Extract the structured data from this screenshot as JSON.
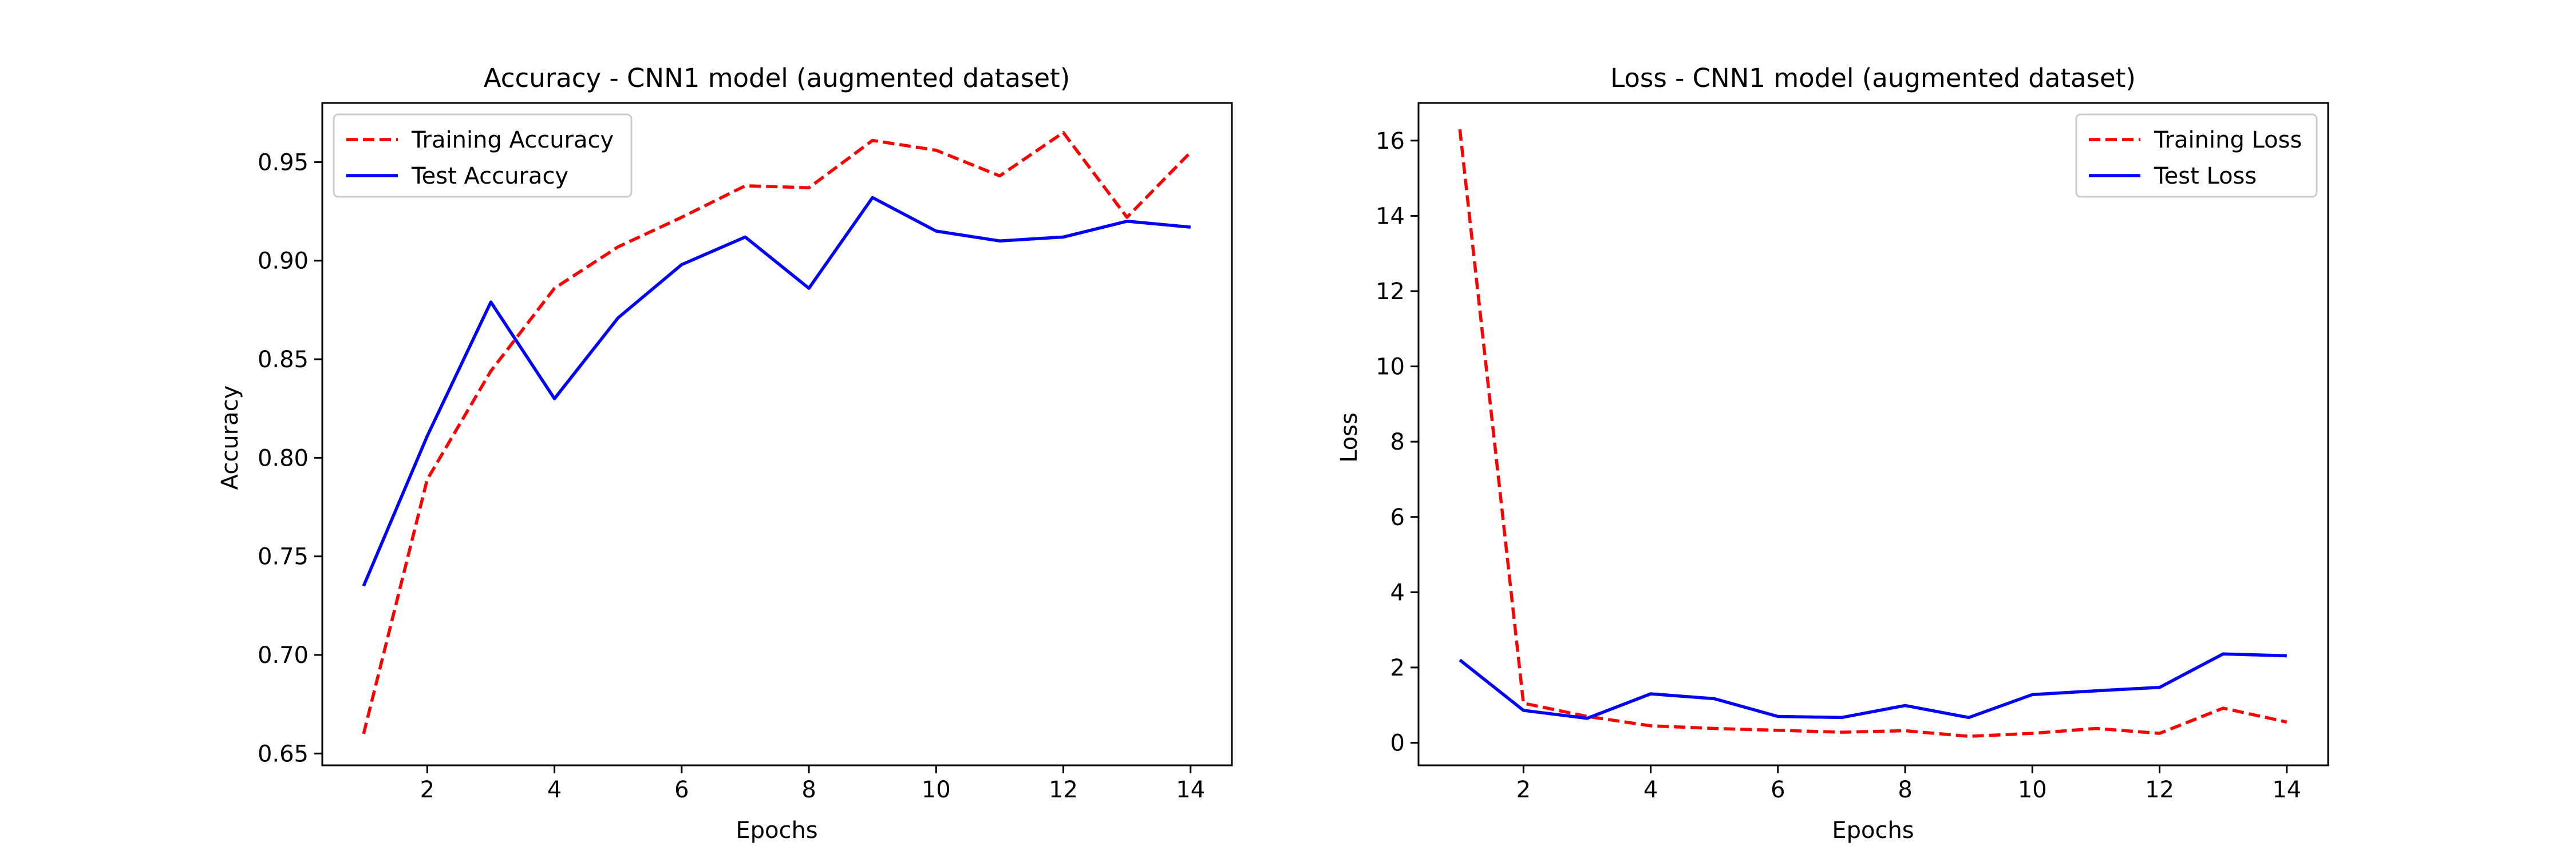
{
  "chart_data": [
    {
      "type": "line",
      "title": "Accuracy - CNN1 model (augmented dataset)",
      "xlabel": "Epochs",
      "ylabel": "Accuracy",
      "xlim": [
        0.35,
        14.65
      ],
      "ylim": [
        0.644,
        0.98
      ],
      "xticks": [
        2,
        4,
        6,
        8,
        10,
        12,
        14
      ],
      "yticks": [
        0.65,
        0.7,
        0.75,
        0.8,
        0.85,
        0.9,
        0.95
      ],
      "ytick_labels": [
        "0.65",
        "0.70",
        "0.75",
        "0.80",
        "0.85",
        "0.90",
        "0.95"
      ],
      "grid": false,
      "legend": "top-left",
      "x": [
        1,
        2,
        3,
        4,
        5,
        6,
        7,
        8,
        9,
        10,
        11,
        12,
        13,
        14
      ],
      "series": [
        {
          "name": "Training Accuracy",
          "color": "#ff0000",
          "dashed": true,
          "values": [
            0.66,
            0.789,
            0.844,
            0.886,
            0.907,
            0.922,
            0.938,
            0.937,
            0.961,
            0.956,
            0.943,
            0.965,
            0.922,
            0.955
          ]
        },
        {
          "name": "Test Accuracy",
          "color": "#0000ff",
          "dashed": false,
          "values": [
            0.735,
            0.811,
            0.879,
            0.83,
            0.871,
            0.898,
            0.912,
            0.886,
            0.932,
            0.915,
            0.91,
            0.912,
            0.92,
            0.917
          ]
        }
      ]
    },
    {
      "type": "line",
      "title": "Loss - CNN1 model (augmented dataset)",
      "xlabel": "Epochs",
      "ylabel": "Loss",
      "xlim": [
        0.35,
        14.65
      ],
      "ylim": [
        -0.6,
        17.0
      ],
      "xticks": [
        2,
        4,
        6,
        8,
        10,
        12,
        14
      ],
      "yticks": [
        0,
        2,
        4,
        6,
        8,
        10,
        12,
        14,
        16
      ],
      "ytick_labels": [
        "0",
        "2",
        "4",
        "6",
        "8",
        "10",
        "12",
        "14",
        "16"
      ],
      "grid": false,
      "legend": "top-right",
      "x": [
        1,
        2,
        3,
        4,
        5,
        6,
        7,
        8,
        9,
        10,
        11,
        12,
        13,
        14
      ],
      "series": [
        {
          "name": "Training Loss",
          "color": "#ff0000",
          "dashed": true,
          "values": [
            16.3,
            1.05,
            0.7,
            0.45,
            0.38,
            0.33,
            0.28,
            0.32,
            0.17,
            0.25,
            0.38,
            0.25,
            0.92,
            0.55
          ]
        },
        {
          "name": "Test Loss",
          "color": "#0000ff",
          "dashed": false,
          "values": [
            2.2,
            0.86,
            0.65,
            1.3,
            1.17,
            0.7,
            0.67,
            0.99,
            0.67,
            1.28,
            1.38,
            1.47,
            2.36,
            2.31
          ]
        }
      ]
    }
  ]
}
